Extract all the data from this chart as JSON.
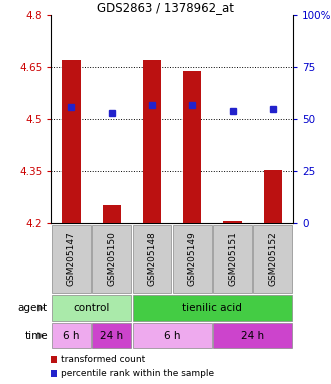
{
  "title": "GDS2863 / 1378962_at",
  "samples": [
    "GSM205147",
    "GSM205150",
    "GSM205148",
    "GSM205149",
    "GSM205151",
    "GSM205152"
  ],
  "bar_values": [
    4.672,
    4.253,
    4.672,
    4.638,
    4.207,
    4.352
  ],
  "bar_bottom": 4.2,
  "percentile_values": [
    56,
    53,
    57,
    57,
    54,
    55
  ],
  "percentile_scale_min": 0,
  "percentile_scale_max": 100,
  "ylim_left": [
    4.2,
    4.8
  ],
  "yticks_left": [
    4.2,
    4.35,
    4.5,
    4.65,
    4.8
  ],
  "yticks_right": [
    0,
    25,
    50,
    75,
    100
  ],
  "bar_color": "#bb1111",
  "dot_color": "#2222cc",
  "agent_info": [
    {
      "text": "control",
      "start": 0,
      "end": 2,
      "color": "#aaeaaa"
    },
    {
      "text": "tienilic acid",
      "start": 2,
      "end": 6,
      "color": "#44cc44"
    }
  ],
  "time_info": [
    {
      "text": "6 h",
      "start": 0,
      "end": 1,
      "color": "#eeaaee"
    },
    {
      "text": "24 h",
      "start": 1,
      "end": 2,
      "color": "#cc44cc"
    },
    {
      "text": "6 h",
      "start": 2,
      "end": 4,
      "color": "#eeaaee"
    },
    {
      "text": "24 h",
      "start": 4,
      "end": 6,
      "color": "#cc44cc"
    }
  ],
  "legend_red_label": "transformed count",
  "legend_blue_label": "percentile rank within the sample",
  "left_color": "#cc0000",
  "right_color": "#0000cc",
  "sample_box_color": "#cccccc",
  "bar_width": 0.45
}
